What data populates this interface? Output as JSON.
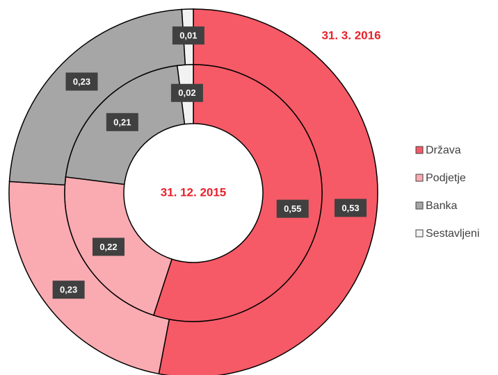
{
  "chart_data": {
    "type": "donut",
    "categories": [
      "Država",
      "Podjetje",
      "Banka",
      "Sestavljeni"
    ],
    "colors": [
      "#f55a66",
      "#f9abb1",
      "#a6a6a6",
      "#f2f2f2"
    ],
    "series": [
      {
        "name": "31. 3. 2016",
        "values": [
          0.53,
          0.23,
          0.23,
          0.01
        ],
        "value_labels": [
          "0,53",
          "0,23",
          "0,23",
          "0,01"
        ]
      },
      {
        "name": "31. 12. 2015",
        "values": [
          0.55,
          0.22,
          0.21,
          0.02
        ],
        "value_labels": [
          "0,55",
          "0,22",
          "0,21",
          "0,02"
        ]
      }
    ],
    "legend": "right"
  }
}
